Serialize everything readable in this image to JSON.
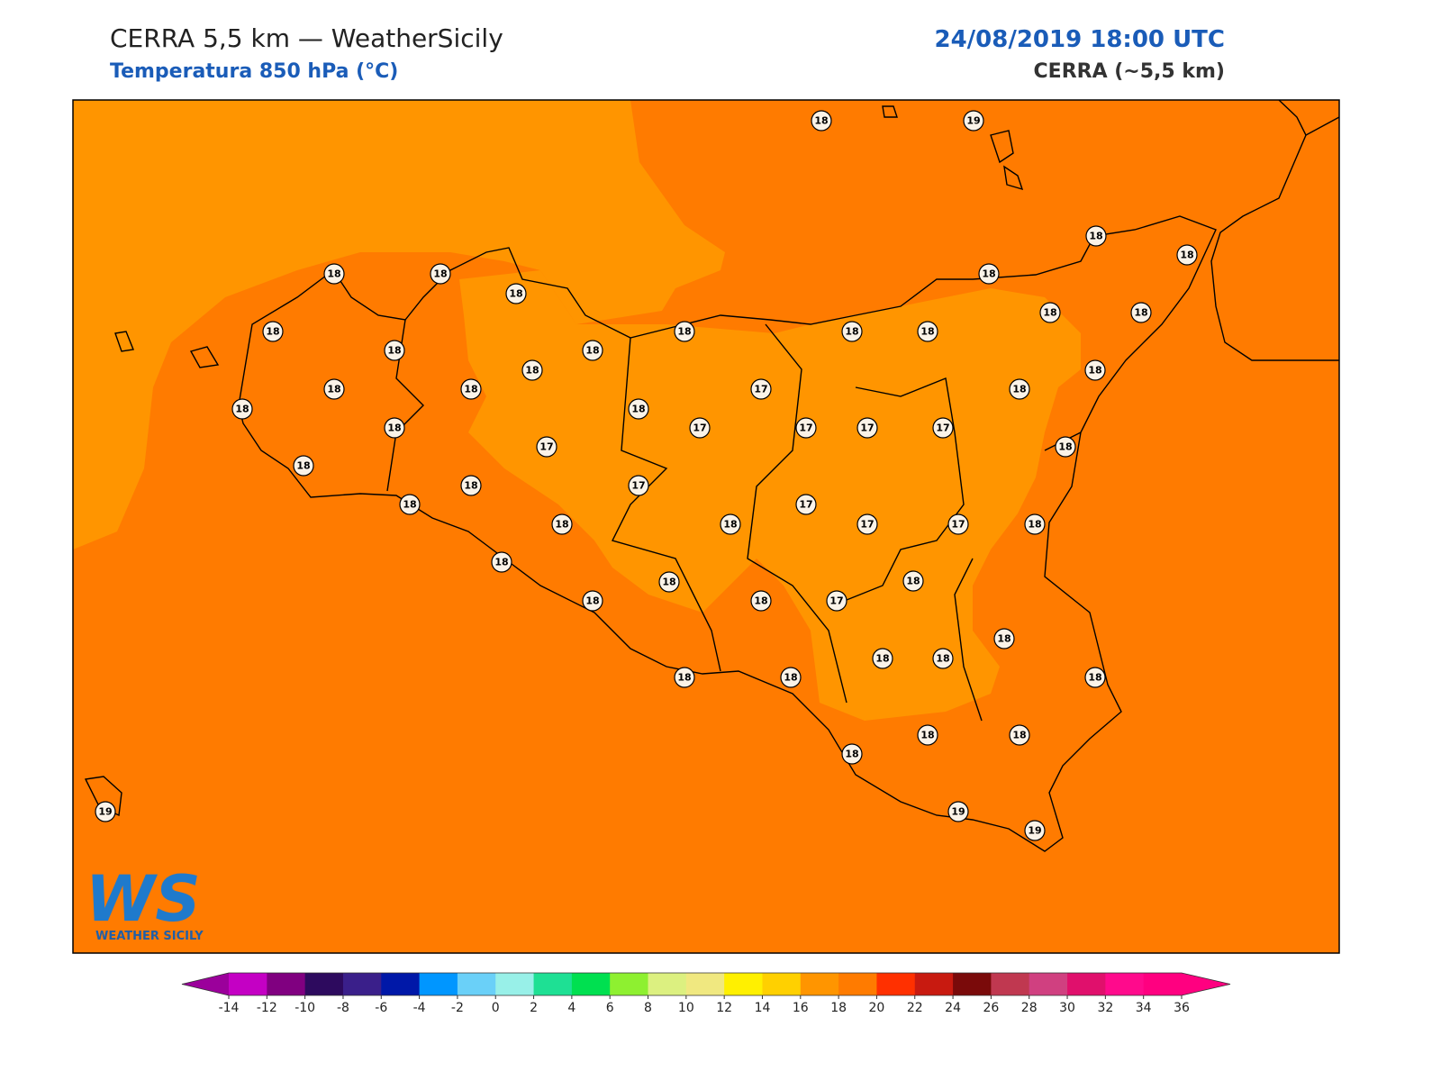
{
  "header": {
    "title": "CERRA 5,5 km — WeatherSicily",
    "subtitle": "Temperatura 850 hPa (°C)",
    "datetime": "24/08/2019 18:00 UTC",
    "model": "CERRA (~5,5 km)"
  },
  "stations": [
    18,
    19,
    18,
    18,
    18,
    18,
    18,
    18,
    18,
    18,
    18,
    18,
    18,
    18,
    18,
    18,
    18,
    18,
    18,
    18,
    17,
    18,
    18,
    18,
    18,
    17,
    17,
    17,
    17,
    17,
    18,
    18,
    18,
    17,
    18,
    17,
    18,
    18,
    17,
    17,
    18,
    18,
    18,
    18,
    18,
    18,
    17,
    18,
    18,
    18,
    18,
    18,
    18,
    18,
    18,
    18,
    19,
    19,
    19
  ],
  "colorbar": {
    "ticks": [
      -14,
      -12,
      -10,
      -8,
      -6,
      -4,
      -2,
      0,
      2,
      4,
      6,
      8,
      10,
      12,
      14,
      16,
      18,
      20,
      22,
      24,
      26,
      28,
      30,
      32,
      34,
      36
    ],
    "colors": [
      "#c400c4",
      "#800080",
      "#2d0a5e",
      "#3a1f8a",
      "#0018a8",
      "#0096ff",
      "#6ad0f8",
      "#98f0e8",
      "#1ee094",
      "#00e050",
      "#8ef030",
      "#dcf080",
      "#f0e880",
      "#fff000",
      "#ffd000",
      "#ff9500",
      "#ff7b00",
      "#ff3000",
      "#c81a10",
      "#7a0a0a",
      "#c03850",
      "#d04080",
      "#e0106c",
      "#ff0a8c",
      "#ff0080"
    ],
    "under": "#9b009b",
    "over": "#ff0080"
  },
  "logo": {
    "mark": "WS",
    "name": "WEATHER SICILY"
  }
}
